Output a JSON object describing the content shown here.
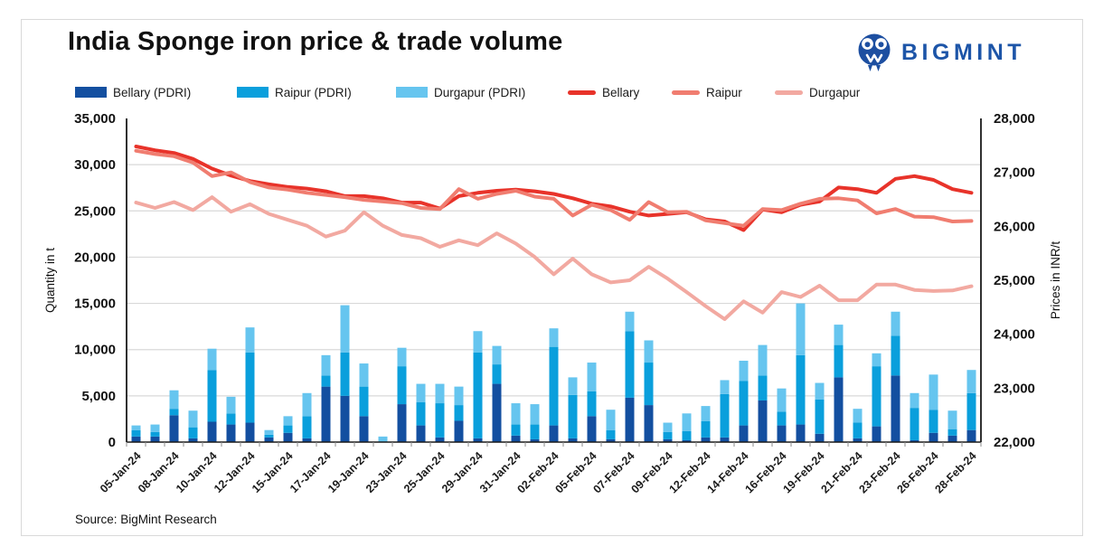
{
  "header": {
    "title": "India Sponge iron price & trade volume",
    "brand": {
      "name": "BIGMINT",
      "text_color": "#1d55a8",
      "icon_color": "#1d4fa1"
    }
  },
  "source_note": "Source: BigMint Research",
  "chart_data": {
    "type": "combo: stacked bar (volumes, left axis) + line (prices, right axis)",
    "categories": [
      "05-Jan-24",
      "06-Jan-24",
      "08-Jan-24",
      "09-Jan-24",
      "10-Jan-24",
      "11-Jan-24",
      "12-Jan-24",
      "13-Jan-24",
      "15-Jan-24",
      "16-Jan-24",
      "17-Jan-24",
      "18-Jan-24",
      "19-Jan-24",
      "20-Jan-24",
      "23-Jan-24",
      "24-Jan-24",
      "25-Jan-24",
      "27-Jan-24",
      "29-Jan-24",
      "30-Jan-24",
      "31-Jan-24",
      "01-Feb-24",
      "02-Feb-24",
      "03-Feb-24",
      "05-Feb-24",
      "06-Feb-24",
      "07-Feb-24",
      "08-Feb-24",
      "09-Feb-24",
      "10-Feb-24",
      "12-Feb-24",
      "13-Feb-24",
      "14-Feb-24",
      "15-Feb-24",
      "16-Feb-24",
      "17-Feb-24",
      "19-Feb-24",
      "20-Feb-24",
      "21-Feb-24",
      "22-Feb-24",
      "23-Feb-24",
      "24-Feb-24",
      "26-Feb-24",
      "27-Feb-24",
      "28-Feb-24"
    ],
    "x_label_every": 2,
    "bar_series": [
      {
        "name": "Bellary (PDRI)",
        "color": "#134fa0",
        "axis": "left",
        "values": [
          600,
          600,
          2900,
          400,
          2200,
          1900,
          2100,
          500,
          1000,
          400,
          6000,
          5000,
          2800,
          0,
          4100,
          1800,
          500,
          2300,
          400,
          6300,
          700,
          300,
          1800,
          400,
          2800,
          300,
          4800,
          4000,
          300,
          200,
          500,
          500,
          1800,
          4500,
          1800,
          1900,
          900,
          7000,
          400,
          1700,
          7200,
          200,
          1000,
          700,
          1300
        ]
      },
      {
        "name": "Raipur (PDRI)",
        "color": "#0a9fdc",
        "axis": "left",
        "values": [
          700,
          500,
          700,
          1200,
          5600,
          1200,
          7600,
          300,
          800,
          2400,
          1200,
          4700,
          3200,
          0,
          4100,
          2500,
          3700,
          1700,
          9300,
          2100,
          1200,
          1600,
          8500,
          4700,
          2700,
          1000,
          7200,
          4600,
          800,
          1000,
          1750,
          4700,
          4800,
          2700,
          1500,
          7500,
          3700,
          3500,
          1700,
          6500,
          4300,
          3500,
          2500,
          700,
          4000
        ]
      },
      {
        "name": "Durgapur (PDRI)",
        "color": "#66c5ef",
        "axis": "left",
        "values": [
          500,
          800,
          2000,
          1800,
          2300,
          1800,
          2700,
          500,
          1000,
          2500,
          2200,
          5100,
          2500,
          600,
          2000,
          2000,
          2100,
          2000,
          2300,
          2000,
          2300,
          2200,
          2000,
          1900,
          3100,
          2200,
          2100,
          2400,
          1000,
          1900,
          1650,
          1500,
          2200,
          3300,
          2500,
          5600,
          1800,
          2200,
          1500,
          1400,
          2600,
          1600,
          3800,
          2000,
          2500
        ]
      }
    ],
    "line_series": [
      {
        "name": "Bellary",
        "color": "#e8332a",
        "axis": "right",
        "values": [
          27480,
          27410,
          27360,
          27250,
          27070,
          26940,
          26840,
          26780,
          26730,
          26700,
          26650,
          26560,
          26560,
          26520,
          26440,
          26440,
          26330,
          26560,
          26620,
          26660,
          26680,
          26650,
          26600,
          26520,
          26420,
          26370,
          26270,
          26200,
          26230,
          26260,
          26130,
          26090,
          25930,
          26310,
          26260,
          26400,
          26460,
          26720,
          26690,
          26620,
          26880,
          26930,
          26860,
          26690,
          26620
        ]
      },
      {
        "name": "Raipur",
        "color": "#f07d70",
        "axis": "right",
        "values": [
          27400,
          27340,
          27300,
          27180,
          26930,
          27000,
          26820,
          26720,
          26680,
          26620,
          26580,
          26540,
          26490,
          26460,
          26430,
          26340,
          26320,
          26690,
          26510,
          26600,
          26660,
          26550,
          26510,
          26200,
          26400,
          26300,
          26120,
          26450,
          26260,
          26270,
          26110,
          26060,
          26010,
          26320,
          26300,
          26420,
          26510,
          26520,
          26480,
          26240,
          26320,
          26180,
          26170,
          26090,
          26100
        ]
      },
      {
        "name": "Durgapur",
        "color": "#f2a9a1",
        "axis": "right",
        "values": [
          26440,
          26340,
          26450,
          26300,
          26540,
          26270,
          26410,
          26230,
          26120,
          26010,
          25810,
          25920,
          26260,
          26010,
          25840,
          25780,
          25620,
          25740,
          25650,
          25870,
          25680,
          25430,
          25110,
          25400,
          25110,
          24960,
          25000,
          25250,
          25030,
          24780,
          24520,
          24280,
          24610,
          24400,
          24780,
          24690,
          24900,
          24630,
          24630,
          24920,
          24920,
          24820,
          24800,
          24810,
          24890
        ]
      }
    ],
    "left_axis": {
      "title": "Quantity in t",
      "min": 0,
      "max": 35000,
      "step": 5000
    },
    "right_axis": {
      "title": "Prices in INR/t",
      "min": 22000,
      "max": 28000,
      "step": 1000
    },
    "grid": true,
    "legend_position": "top",
    "legend_offsets": [
      83,
      262,
      438,
      628,
      743,
      857
    ]
  }
}
